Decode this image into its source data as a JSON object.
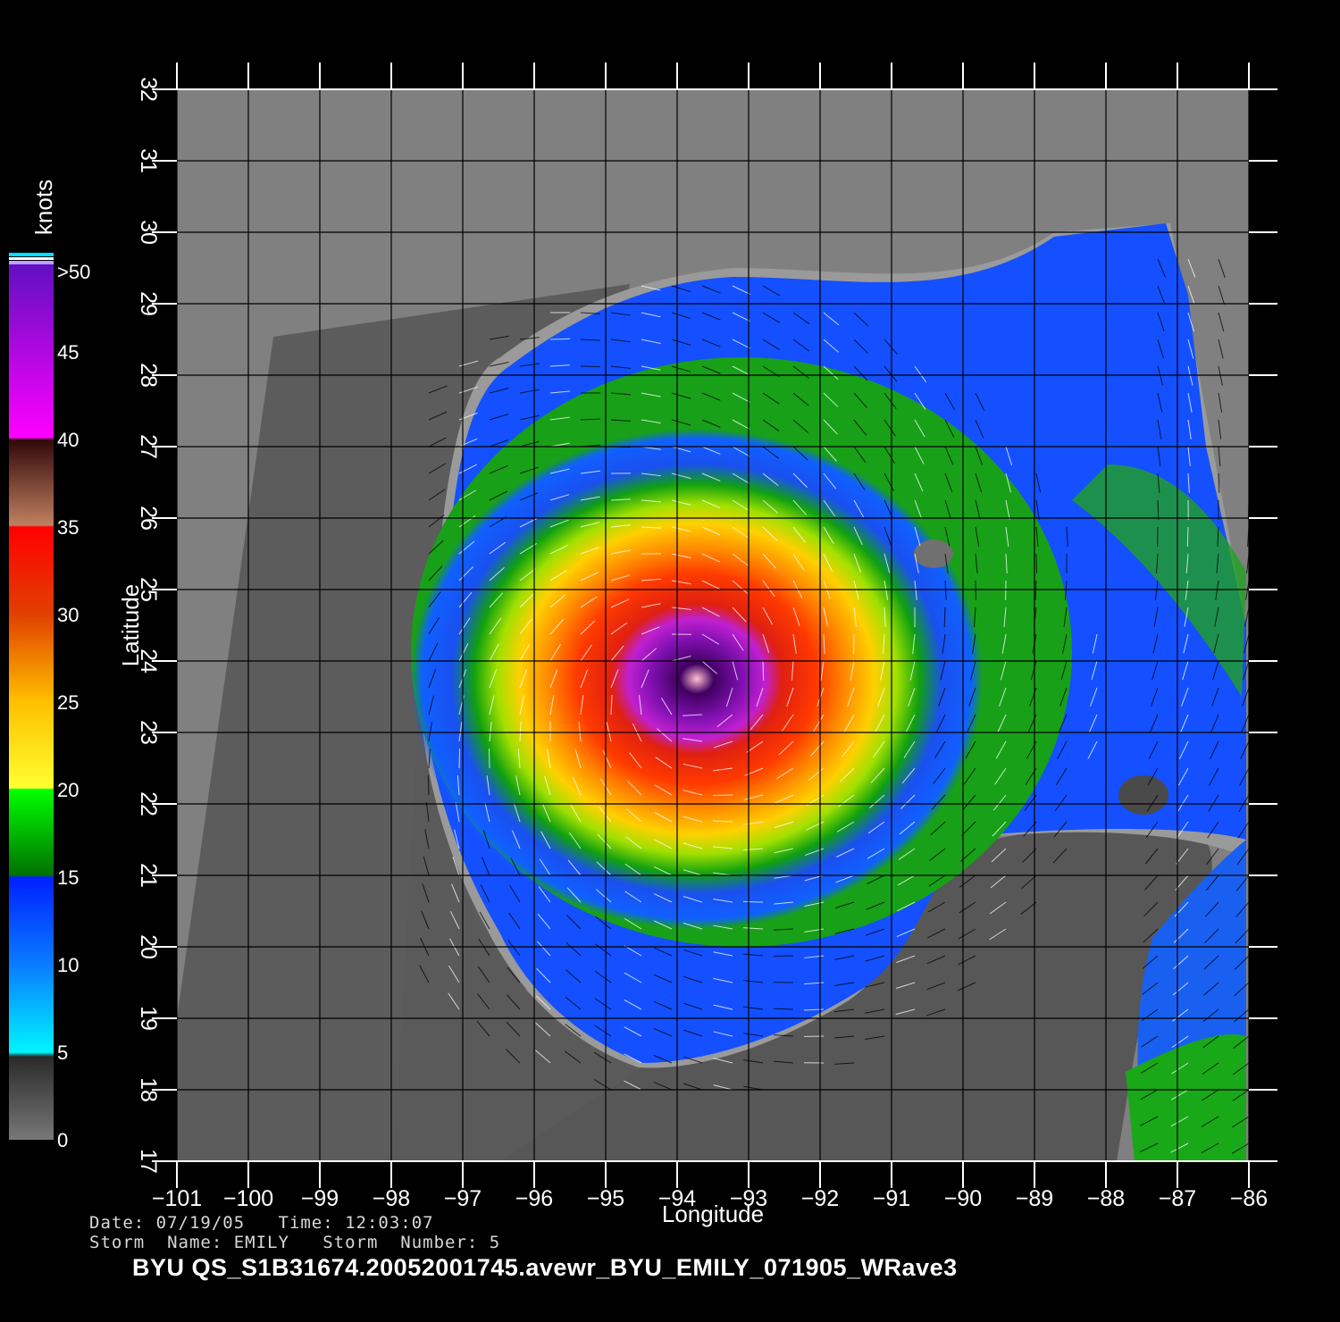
{
  "map": {
    "x_axis_title": "Longitude",
    "y_axis_title": "Latitude",
    "lon_range": [
      -101,
      -86
    ],
    "lat_range": [
      17,
      32
    ],
    "lon_ticks": [
      "−101",
      "−100",
      "−99",
      "−98",
      "−97",
      "−96",
      "−95",
      "−94",
      "−93",
      "−92",
      "−91",
      "−90",
      "−89",
      "−88",
      "−87",
      "−86"
    ],
    "lat_ticks": [
      "17",
      "18",
      "19",
      "20",
      "21",
      "22",
      "23",
      "24",
      "25",
      "26",
      "27",
      "28",
      "29",
      "30",
      "31",
      "32"
    ],
    "land_color": "#555555",
    "nodata_color": "#808080",
    "storm_center": {
      "lon": -93.8,
      "lat": 23.6
    }
  },
  "colorbar": {
    "unit": "knots",
    "labels": [
      "0",
      "5",
      "10",
      "15",
      "20",
      "25",
      "30",
      "35",
      "40",
      "45",
      ">50"
    ],
    "colors": {
      "0-5": "#777777",
      "5-10": "#00e6ff",
      "10-15": "#0040ff",
      "15-20": "#00c000",
      "20-25": "#ffee00",
      "25-30": "#ff7000",
      "30-35": "#ff1a00",
      "35-40": "#8a4a2a",
      "40-45": "#e000e0",
      "45-50": "#8000c0"
    }
  },
  "info": {
    "date_line": "Date: 07/19/05   Time: 12:03:07",
    "storm_line": "Storm  Name: EMILY   Storm  Number: 5",
    "product": "BYU  QS_S1B31674.20052001745.avewr_BYU_EMILY_071905_WRave3"
  }
}
